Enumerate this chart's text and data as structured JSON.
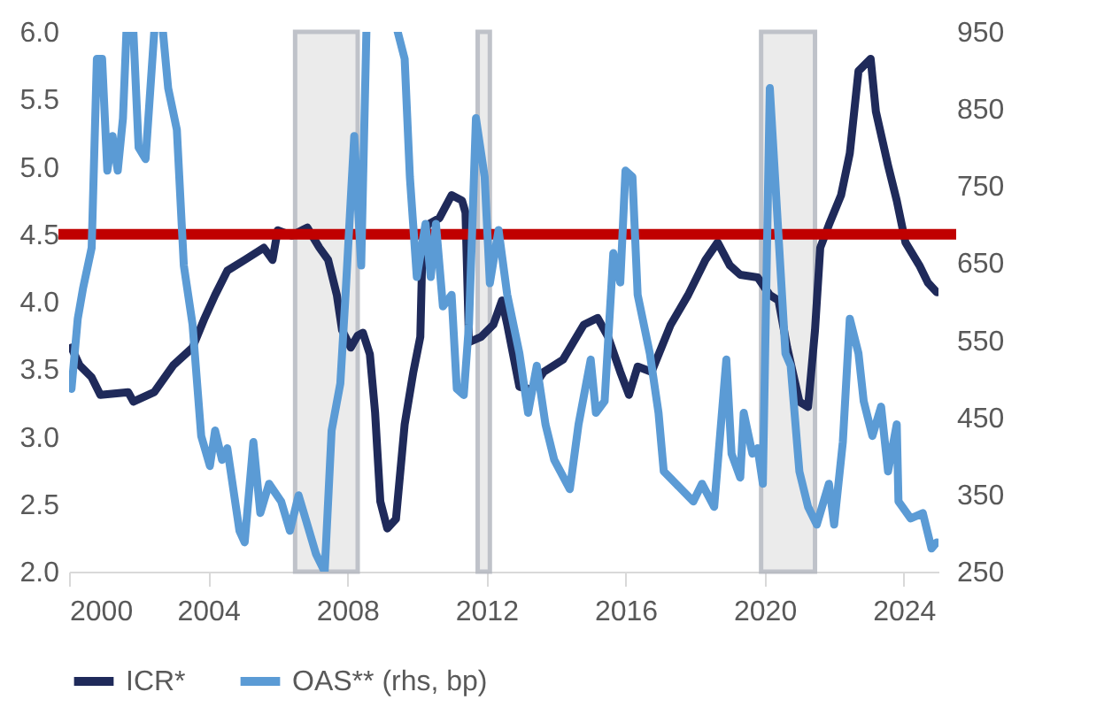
{
  "chart_data": {
    "type": "line",
    "xlim": [
      2000,
      2025
    ],
    "xticks": [
      2000,
      2004,
      2008,
      2012,
      2016,
      2020,
      2024
    ],
    "ylim": [
      2,
      6
    ],
    "yticks": [
      {
        "value": 2,
        "label": "2.0"
      },
      {
        "value": 2.5,
        "label": "2.5"
      },
      {
        "value": 3,
        "label": "3.0"
      },
      {
        "value": 3.5,
        "label": "3.5"
      },
      {
        "value": 4,
        "label": "4.0"
      },
      {
        "value": 4.5,
        "label": "4.5"
      },
      {
        "value": 5,
        "label": "5.0"
      },
      {
        "value": 5.5,
        "label": "5.5"
      },
      {
        "value": 6,
        "label": "6.0"
      }
    ],
    "y2lim": [
      250,
      950
    ],
    "y2ticks": [
      250,
      350,
      450,
      550,
      650,
      750,
      850,
      950
    ],
    "legend": "bottom",
    "marker": "none",
    "line_style": "solid",
    "series": [
      {
        "name": "ICR*",
        "color": "#1f2a5a",
        "x": [
          2000.07,
          2000.3,
          2000.65,
          2000.9,
          2001.7,
          2001.85,
          2002.45,
          2003.0,
          2003.55,
          2003.9,
          2004.2,
          2004.55,
          2005.05,
          2005.6,
          2005.85,
          2006.0,
          2006.4,
          2006.85,
          2007.2,
          2007.45,
          2007.7,
          2007.85,
          2008.1,
          2008.3,
          2008.45,
          2008.65,
          2008.8,
          2008.95,
          2009.15,
          2009.4,
          2009.65,
          2009.9,
          2010.1,
          2010.15,
          2010.3,
          2010.65,
          2011.0,
          2011.3,
          2011.4,
          2011.5,
          2011.85,
          2012.2,
          2012.45,
          2012.6,
          2012.95,
          2013.3,
          2013.65,
          2014.2,
          2014.8,
          2015.2,
          2015.5,
          2015.85,
          2016.1,
          2016.35,
          2016.75,
          2017.3,
          2017.8,
          2018.3,
          2018.65,
          2019.0,
          2019.3,
          2019.8,
          2020.15,
          2020.4,
          2020.65,
          2021.0,
          2021.25,
          2021.45,
          2021.6,
          2021.85,
          2022.2,
          2022.45,
          2022.7,
          2023.05,
          2023.2,
          2023.55,
          2023.8,
          2024.05,
          2024.45,
          2024.7,
          2024.95
        ],
        "values": [
          3.66,
          3.53,
          3.44,
          3.31,
          3.33,
          3.26,
          3.33,
          3.53,
          3.66,
          3.88,
          4.05,
          4.23,
          4.31,
          4.4,
          4.31,
          4.53,
          4.49,
          4.55,
          4.4,
          4.31,
          4.05,
          3.79,
          3.66,
          3.75,
          3.77,
          3.61,
          3.18,
          2.52,
          2.32,
          2.39,
          3.09,
          3.48,
          3.74,
          4.27,
          4.57,
          4.62,
          4.79,
          4.75,
          4.66,
          3.7,
          3.74,
          3.83,
          4.01,
          3.83,
          3.37,
          3.35,
          3.48,
          3.57,
          3.83,
          3.88,
          3.74,
          3.48,
          3.31,
          3.52,
          3.48,
          3.83,
          4.05,
          4.31,
          4.44,
          4.27,
          4.2,
          4.18,
          4.05,
          4.01,
          3.66,
          3.26,
          3.22,
          3.79,
          4.4,
          4.57,
          4.79,
          5.1,
          5.71,
          5.8,
          5.41,
          5.01,
          4.75,
          4.44,
          4.27,
          4.14,
          4.07
        ]
      },
      {
        "name": "OAS** (rhs, bp)",
        "color": "#5b9bd5",
        "axis": "y2",
        "x": [
          2000.07,
          2000.25,
          2000.4,
          2000.65,
          2000.8,
          2000.95,
          2001.1,
          2001.25,
          2001.4,
          2001.55,
          2001.65,
          2001.75,
          2001.85,
          2002.0,
          2002.2,
          2002.45,
          2002.55,
          2002.7,
          2002.85,
          2003.1,
          2003.3,
          2003.55,
          2003.8,
          2004.05,
          2004.2,
          2004.4,
          2004.55,
          2004.9,
          2005.05,
          2005.3,
          2005.5,
          2005.75,
          2006.1,
          2006.35,
          2006.6,
          2006.85,
          2007.1,
          2007.35,
          2007.55,
          2007.8,
          2007.95,
          2008.2,
          2008.4,
          2008.55,
          2009.0,
          2009.45,
          2009.65,
          2009.8,
          2010.0,
          2010.25,
          2010.4,
          2010.55,
          2010.75,
          2011.0,
          2011.15,
          2011.35,
          2011.5,
          2011.7,
          2011.95,
          2012.1,
          2012.35,
          2012.6,
          2012.95,
          2013.2,
          2013.45,
          2013.7,
          2013.95,
          2014.4,
          2014.65,
          2015.0,
          2015.15,
          2015.4,
          2015.65,
          2015.85,
          2016.0,
          2016.2,
          2016.35,
          2016.7,
          2016.95,
          2017.1,
          2017.45,
          2017.95,
          2018.2,
          2018.55,
          2018.9,
          2019.05,
          2019.3,
          2019.4,
          2019.65,
          2019.8,
          2019.95,
          2020.15,
          2020.3,
          2020.6,
          2020.75,
          2021.0,
          2021.25,
          2021.5,
          2021.85,
          2022.0,
          2022.25,
          2022.45,
          2022.7,
          2022.85,
          2023.1,
          2023.35,
          2023.55,
          2023.8,
          2023.85,
          2024.2,
          2024.55,
          2024.8,
          2024.95
        ],
        "values": [
          487,
          578,
          617,
          670,
          915,
          915,
          770,
          815,
          770,
          838,
          950,
          null,
          950,
          800,
          785,
          950,
          null,
          950,
          877,
          823,
          647,
          571,
          426,
          387,
          433,
          395,
          410,
          303,
          288,
          418,
          326,
          364,
          341,
          303,
          349,
          311,
          273,
          250,
          433,
          494,
          609,
          815,
          647,
          950,
          null,
          950,
          915,
          762,
          632,
          701,
          632,
          701,
          594,
          609,
          487,
          479,
          571,
          838,
          762,
          624,
          693,
          609,
          533,
          456,
          517,
          441,
          395,
          357,
          441,
          525,
          456,
          471,
          663,
          625,
          770,
          762,
          609,
          533,
          456,
          380,
          364,
          341,
          364,
          334,
          525,
          403,
          372,
          456,
          403,
          410,
          364,
          877,
          762,
          533,
          517,
          380,
          334,
          311,
          364,
          311,
          418,
          578,
          533,
          471,
          426,
          464,
          380,
          441,
          341,
          319,
          326,
          280,
          288
        ]
      }
    ],
    "ref_lines": [
      {
        "axis": "y",
        "value": 4.5,
        "color": "#c00000"
      }
    ],
    "bands": [
      {
        "axis": "x",
        "from": 2006.5,
        "to": 2008.3,
        "color": "#e8e8e8"
      },
      {
        "axis": "x",
        "from": 2011.75,
        "to": 2012.1,
        "color": "#e8e8e8"
      },
      {
        "axis": "x",
        "from": 2019.9,
        "to": 2021.45,
        "color": "#e8e8e8"
      }
    ]
  }
}
